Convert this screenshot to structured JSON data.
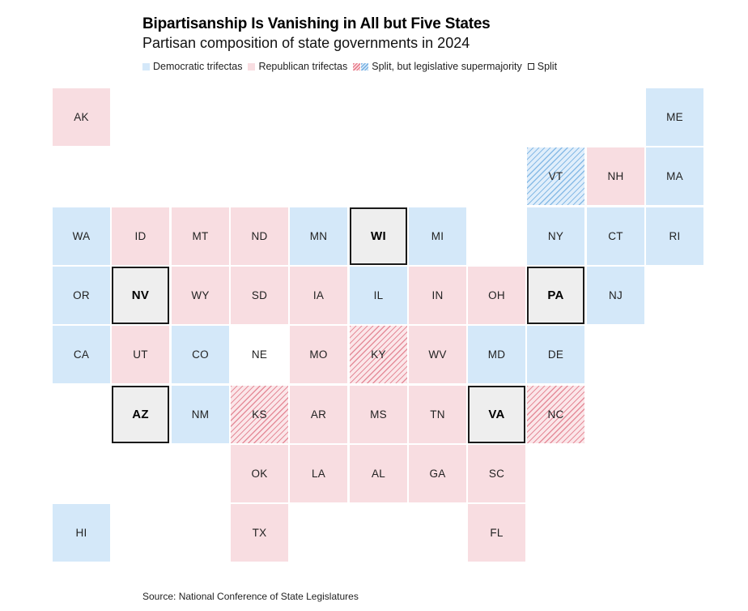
{
  "title": "Bipartisanship Is Vanishing in All but Five States",
  "subtitle": "Partisan composition of state governments in 2024",
  "legend": {
    "dem": "Democratic trifectas",
    "rep": "Republican trifectas",
    "super": "Split, but legislative supermajority",
    "split": "Split"
  },
  "colors": {
    "dem": "#d4e8f9",
    "rep": "#f8dde1",
    "split": "#eeeeee",
    "hatch_red": "#e58d9a",
    "hatch_blue": "#88bbe6"
  },
  "source": "Source: National Conference of State Legislatures",
  "states": [
    {
      "abbr": "AK",
      "row": 0,
      "col": 0,
      "status": "rep"
    },
    {
      "abbr": "ME",
      "row": 0,
      "col": 10,
      "status": "dem"
    },
    {
      "abbr": "VT",
      "row": 1,
      "col": 8,
      "status": "dem-super"
    },
    {
      "abbr": "NH",
      "row": 1,
      "col": 9,
      "status": "rep"
    },
    {
      "abbr": "MA",
      "row": 1,
      "col": 10,
      "status": "dem"
    },
    {
      "abbr": "WA",
      "row": 2,
      "col": 0,
      "status": "dem"
    },
    {
      "abbr": "ID",
      "row": 2,
      "col": 1,
      "status": "rep"
    },
    {
      "abbr": "MT",
      "row": 2,
      "col": 2,
      "status": "rep"
    },
    {
      "abbr": "ND",
      "row": 2,
      "col": 3,
      "status": "rep"
    },
    {
      "abbr": "MN",
      "row": 2,
      "col": 4,
      "status": "dem"
    },
    {
      "abbr": "WI",
      "row": 2,
      "col": 5,
      "status": "split"
    },
    {
      "abbr": "MI",
      "row": 2,
      "col": 6,
      "status": "dem"
    },
    {
      "abbr": "NY",
      "row": 2,
      "col": 8,
      "status": "dem"
    },
    {
      "abbr": "CT",
      "row": 2,
      "col": 9,
      "status": "dem"
    },
    {
      "abbr": "RI",
      "row": 2,
      "col": 10,
      "status": "dem"
    },
    {
      "abbr": "OR",
      "row": 3,
      "col": 0,
      "status": "dem"
    },
    {
      "abbr": "NV",
      "row": 3,
      "col": 1,
      "status": "split"
    },
    {
      "abbr": "WY",
      "row": 3,
      "col": 2,
      "status": "rep"
    },
    {
      "abbr": "SD",
      "row": 3,
      "col": 3,
      "status": "rep"
    },
    {
      "abbr": "IA",
      "row": 3,
      "col": 4,
      "status": "rep"
    },
    {
      "abbr": "IL",
      "row": 3,
      "col": 5,
      "status": "dem"
    },
    {
      "abbr": "IN",
      "row": 3,
      "col": 6,
      "status": "rep"
    },
    {
      "abbr": "OH",
      "row": 3,
      "col": 7,
      "status": "rep"
    },
    {
      "abbr": "PA",
      "row": 3,
      "col": 8,
      "status": "split"
    },
    {
      "abbr": "NJ",
      "row": 3,
      "col": 9,
      "status": "dem"
    },
    {
      "abbr": "CA",
      "row": 4,
      "col": 0,
      "status": "dem"
    },
    {
      "abbr": "UT",
      "row": 4,
      "col": 1,
      "status": "rep"
    },
    {
      "abbr": "CO",
      "row": 4,
      "col": 2,
      "status": "dem"
    },
    {
      "abbr": "NE",
      "row": 4,
      "col": 3,
      "status": "nocolor"
    },
    {
      "abbr": "MO",
      "row": 4,
      "col": 4,
      "status": "rep"
    },
    {
      "abbr": "KY",
      "row": 4,
      "col": 5,
      "status": "rep-super"
    },
    {
      "abbr": "WV",
      "row": 4,
      "col": 6,
      "status": "rep"
    },
    {
      "abbr": "MD",
      "row": 4,
      "col": 7,
      "status": "dem"
    },
    {
      "abbr": "DE",
      "row": 4,
      "col": 8,
      "status": "dem"
    },
    {
      "abbr": "AZ",
      "row": 5,
      "col": 1,
      "status": "split"
    },
    {
      "abbr": "NM",
      "row": 5,
      "col": 2,
      "status": "dem"
    },
    {
      "abbr": "KS",
      "row": 5,
      "col": 3,
      "status": "rep-super"
    },
    {
      "abbr": "AR",
      "row": 5,
      "col": 4,
      "status": "rep"
    },
    {
      "abbr": "MS",
      "row": 5,
      "col": 5,
      "status": "rep"
    },
    {
      "abbr": "TN",
      "row": 5,
      "col": 6,
      "status": "rep"
    },
    {
      "abbr": "VA",
      "row": 5,
      "col": 7,
      "status": "split"
    },
    {
      "abbr": "NC",
      "row": 5,
      "col": 8,
      "status": "rep-super"
    },
    {
      "abbr": "OK",
      "row": 6,
      "col": 3,
      "status": "rep"
    },
    {
      "abbr": "LA",
      "row": 6,
      "col": 4,
      "status": "rep"
    },
    {
      "abbr": "AL",
      "row": 6,
      "col": 5,
      "status": "rep"
    },
    {
      "abbr": "GA",
      "row": 6,
      "col": 6,
      "status": "rep"
    },
    {
      "abbr": "SC",
      "row": 6,
      "col": 7,
      "status": "rep"
    },
    {
      "abbr": "HI",
      "row": 7,
      "col": 0,
      "status": "dem"
    },
    {
      "abbr": "TX",
      "row": 7,
      "col": 3,
      "status": "rep"
    },
    {
      "abbr": "FL",
      "row": 7,
      "col": 7,
      "status": "rep"
    }
  ]
}
